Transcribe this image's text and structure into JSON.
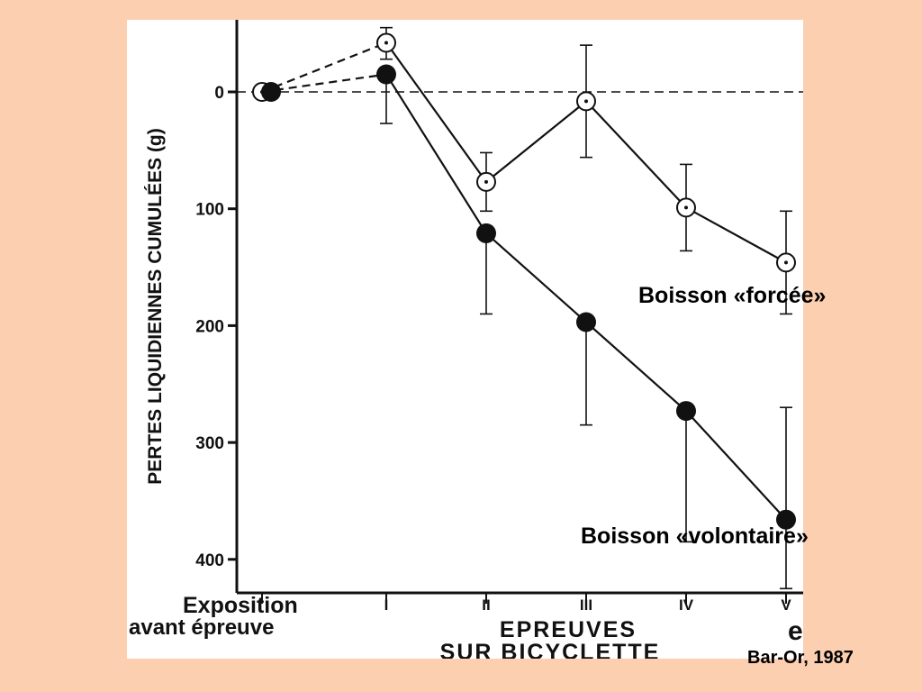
{
  "chart_data": {
    "type": "line",
    "ylabel": "PERTES LIQUIDIENNES CUMULÉES (g)",
    "xlabel_lines": [
      "EPREUVES",
      "SUR BICYCLETTE"
    ],
    "categories": [
      "Exposition avant épreuve",
      "I",
      "II",
      "III",
      "IV",
      "V"
    ],
    "exposition_lines": [
      "Exposition",
      "avant épreuve"
    ],
    "yticks": [
      0,
      100,
      200,
      300,
      400
    ],
    "ylim": [
      -58,
      425
    ],
    "axis_inverted": true,
    "series": [
      {
        "name": "Boisson «forcée»",
        "marker": "open-circle",
        "values": [
          0,
          -42,
          77,
          8,
          99,
          146
        ],
        "err_low": [
          0,
          -55,
          52,
          -40,
          62,
          102
        ],
        "err_high": [
          0,
          -28,
          102,
          56,
          136,
          190
        ]
      },
      {
        "name": "Boisson «volontaire»",
        "marker": "filled-circle",
        "values": [
          0,
          -15,
          121,
          197,
          273,
          366
        ],
        "err_low": [
          0,
          -15,
          121,
          197,
          273,
          270
        ],
        "err_high": [
          0,
          27,
          190,
          285,
          385,
          425
        ]
      }
    ],
    "zero_line": "dashed",
    "grid": false
  },
  "annotations": {
    "series_forcee_label": "Boisson «forcée»",
    "series_volontaire_label": "Boisson «volontaire»",
    "credit": "Bar-Or, 1987",
    "partial_glyph": "e"
  },
  "colors": {
    "background": "#fccfb1",
    "panel": "#ffffff",
    "ink": "#111111"
  }
}
